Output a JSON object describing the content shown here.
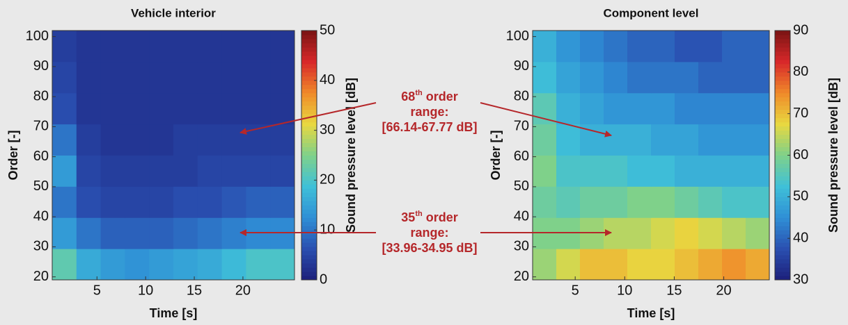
{
  "chart_data": [
    {
      "type": "heatmap",
      "title": "Vehicle interior",
      "x_label": "Time [s]",
      "y_label": "Order  [-]",
      "colorbar_label": "Sound pressure level [dB]",
      "xlim": [
        0.4,
        25.3
      ],
      "ylim": [
        19,
        102
      ],
      "xticks": [
        5,
        10,
        15,
        20
      ],
      "yticks": [
        20,
        30,
        40,
        50,
        60,
        70,
        80,
        90,
        100
      ],
      "zlim": [
        0,
        50
      ],
      "zticks": [
        0,
        10,
        20,
        30,
        40,
        50
      ],
      "colormap": [
        "#1c1f7a",
        "#2a4fb0",
        "#2f8fd6",
        "#3fc0d8",
        "#7fd18a",
        "#e8d840",
        "#f08a2a",
        "#d8282a",
        "#7a1414"
      ],
      "z": [
        [
          22,
          16,
          14,
          13,
          14,
          15,
          16,
          18,
          20,
          20
        ],
        [
          14,
          10,
          8,
          8,
          8,
          9,
          10,
          11,
          12,
          12
        ],
        [
          10,
          6,
          5,
          5,
          5,
          6,
          6,
          7,
          8,
          8
        ],
        [
          14,
          5,
          4,
          4,
          4,
          4,
          5,
          5,
          5,
          5
        ],
        [
          10,
          4,
          3,
          3,
          3,
          4,
          4,
          4,
          4,
          4
        ],
        [
          6,
          3,
          3,
          3,
          3,
          3,
          3,
          3,
          3,
          3
        ],
        [
          5,
          3,
          3,
          3,
          3,
          3,
          3,
          3,
          3,
          3
        ],
        [
          4,
          3,
          3,
          3,
          3,
          3,
          3,
          3,
          3,
          3
        ]
      ]
    },
    {
      "type": "heatmap",
      "title": "Component level",
      "x_label": "Time [s]",
      "y_label": "Order [-]",
      "colorbar_label": "Sound pressure level [dB]",
      "xlim": [
        0.7,
        24.6
      ],
      "ylim": [
        19,
        102
      ],
      "xticks": [
        5,
        10,
        15,
        20
      ],
      "yticks": [
        20,
        30,
        40,
        50,
        60,
        70,
        80,
        90,
        100
      ],
      "zlim": [
        30,
        90
      ],
      "zticks": [
        30,
        40,
        50,
        60,
        70,
        80,
        90
      ],
      "colormap": [
        "#1c1f7a",
        "#2a4fb0",
        "#2f8fd6",
        "#3fc0d8",
        "#7fd18a",
        "#e8d840",
        "#f08a2a",
        "#d8282a",
        "#7a1414"
      ],
      "z": [
        [
          62,
          66,
          70,
          70,
          68,
          68,
          70,
          72,
          74,
          72
        ],
        [
          60,
          60,
          62,
          64,
          64,
          66,
          68,
          66,
          64,
          62
        ],
        [
          58,
          56,
          58,
          58,
          60,
          60,
          58,
          56,
          54,
          54
        ],
        [
          60,
          54,
          54,
          54,
          52,
          52,
          50,
          50,
          50,
          50
        ],
        [
          58,
          52,
          50,
          50,
          50,
          48,
          48,
          46,
          46,
          46
        ],
        [
          56,
          50,
          48,
          46,
          46,
          46,
          44,
          44,
          44,
          44
        ],
        [
          52,
          48,
          46,
          44,
          42,
          42,
          42,
          40,
          40,
          40
        ],
        [
          50,
          46,
          44,
          42,
          40,
          40,
          38,
          38,
          40,
          40
        ]
      ]
    }
  ],
  "annotations": [
    {
      "number": "68",
      "suffix": "th",
      "word": " order",
      "line2": "range:",
      "line3": "[66.14-67.77 dB]"
    },
    {
      "number": "35",
      "suffix": "th",
      "word": " order",
      "line2": "range:",
      "line3": "[33.96-34.95 dB]"
    }
  ]
}
